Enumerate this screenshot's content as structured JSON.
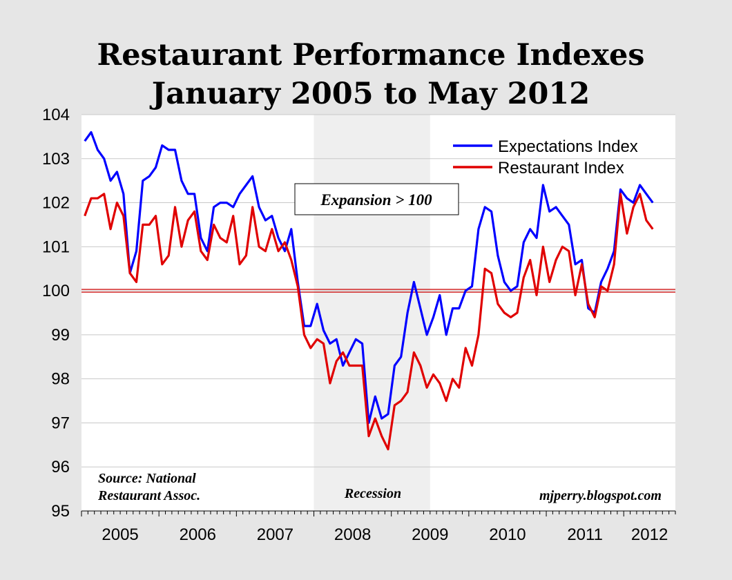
{
  "chart_data": {
    "type": "line",
    "title": "Restaurant Performance Indexes",
    "subtitle": "January 2005 to May 2012",
    "xlabel": "",
    "ylabel": "",
    "ylim": [
      95,
      104
    ],
    "yticks": [
      "95",
      "96",
      "97",
      "98",
      "99",
      "100",
      "101",
      "102",
      "103",
      "104"
    ],
    "x_start": "2005-01",
    "x_end": "2012-05",
    "xticks": [
      "2005",
      "2006",
      "2007",
      "2008",
      "2009",
      "2010",
      "2011",
      "2012"
    ],
    "legend_position": "top-right",
    "grid": true,
    "reference_line": {
      "value": 100,
      "color": "#cc0000"
    },
    "recession": {
      "start": "2008-01",
      "end": "2009-06",
      "label": "Recession",
      "color": "#efefef"
    },
    "series": [
      {
        "name": "Expectations Index",
        "color": "#0000ff",
        "values": [
          103.4,
          103.6,
          103.2,
          103.0,
          102.5,
          102.7,
          102.2,
          100.4,
          100.9,
          102.5,
          102.6,
          102.8,
          103.3,
          103.2,
          103.2,
          102.5,
          102.2,
          102.2,
          101.2,
          100.9,
          101.9,
          102.0,
          102.0,
          101.9,
          102.2,
          102.4,
          102.6,
          101.9,
          101.6,
          101.7,
          101.2,
          100.9,
          101.4,
          100.2,
          99.2,
          99.2,
          99.7,
          99.1,
          98.8,
          98.9,
          98.3,
          98.6,
          98.9,
          98.8,
          97.0,
          97.6,
          97.1,
          97.2,
          98.3,
          98.5,
          99.5,
          100.2,
          99.6,
          99.0,
          99.4,
          99.9,
          99.0,
          99.6,
          99.6,
          100.0,
          100.1,
          101.4,
          101.9,
          101.8,
          100.8,
          100.2,
          100.0,
          100.1,
          101.1,
          101.4,
          101.2,
          102.4,
          101.8,
          101.9,
          101.7,
          101.5,
          100.6,
          100.7,
          99.6,
          99.5,
          100.2,
          100.5,
          100.9,
          102.3,
          102.1,
          102.0,
          102.4,
          102.2,
          102.0
        ]
      },
      {
        "name": "Restaurant Index",
        "color": "#e00000",
        "values": [
          101.7,
          102.1,
          102.1,
          102.2,
          101.4,
          102.0,
          101.7,
          100.4,
          100.2,
          101.5,
          101.5,
          101.7,
          100.6,
          100.8,
          101.9,
          101.0,
          101.6,
          101.8,
          100.9,
          100.7,
          101.5,
          101.2,
          101.1,
          101.7,
          100.6,
          100.8,
          101.9,
          101.0,
          100.9,
          101.4,
          100.9,
          101.1,
          100.7,
          100.1,
          99.0,
          98.7,
          98.9,
          98.8,
          97.9,
          98.4,
          98.6,
          98.3,
          98.3,
          98.3,
          96.7,
          97.1,
          96.7,
          96.4,
          97.4,
          97.5,
          97.7,
          98.6,
          98.3,
          97.8,
          98.1,
          97.9,
          97.5,
          98.0,
          97.8,
          98.7,
          98.3,
          99.0,
          100.5,
          100.4,
          99.7,
          99.5,
          99.4,
          99.5,
          100.3,
          100.7,
          99.9,
          101.0,
          100.2,
          100.7,
          101.0,
          100.9,
          99.9,
          100.6,
          99.7,
          99.4,
          100.1,
          100.0,
          100.6,
          102.2,
          101.3,
          101.9,
          102.2,
          101.6,
          101.4
        ]
      }
    ],
    "annotations": {
      "expansion": "Expansion > 100",
      "source_line1": "Source: National",
      "source_line2": "Restaurant Assoc.",
      "credit": "mjperry.blogspot.com"
    }
  }
}
